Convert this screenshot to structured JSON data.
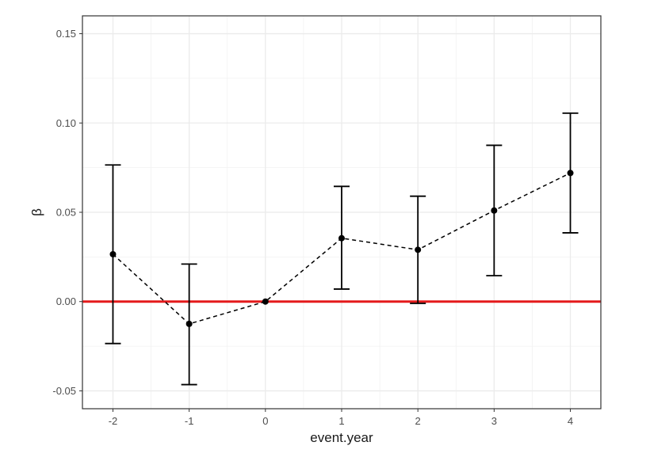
{
  "chart_data": {
    "type": "scatter",
    "title": "",
    "xlabel": "event.year",
    "ylabel": "β",
    "x": [
      -2,
      -1,
      0,
      1,
      2,
      3,
      4
    ],
    "x_ticks": [
      "-2",
      "-1",
      "0",
      "1",
      "2",
      "3",
      "4"
    ],
    "xlim": [
      -2.4,
      4.4
    ],
    "ylim": [
      -0.06,
      0.16
    ],
    "y_ticks": [
      "-0.05",
      "0.00",
      "0.05",
      "0.10",
      "0.15"
    ],
    "y_tick_values": [
      -0.05,
      0.0,
      0.05,
      0.1,
      0.15
    ],
    "grid": true,
    "legend": "none",
    "series": [
      {
        "estimate": [
          0.0265,
          -0.0125,
          0.0,
          0.0355,
          0.029,
          0.051,
          0.072
        ],
        "ci_lower": [
          -0.0235,
          -0.0465,
          0.0,
          0.007,
          -0.001,
          0.0145,
          0.0385
        ],
        "ci_upper": [
          0.0765,
          0.021,
          0.0,
          0.0645,
          0.059,
          0.0875,
          0.1055
        ],
        "line_style": "dashed",
        "color": "#000000"
      }
    ],
    "reference_line": {
      "y": 0.0,
      "color": "#e41a1c"
    }
  }
}
